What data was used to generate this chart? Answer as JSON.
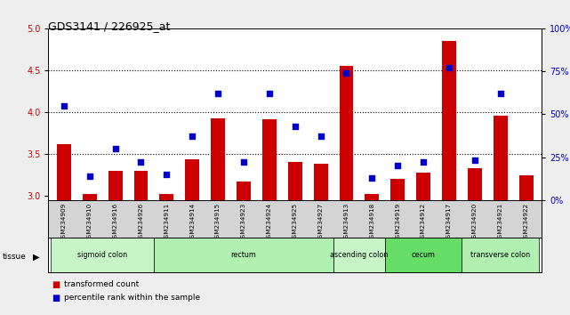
{
  "title": "GDS3141 / 226925_at",
  "samples": [
    "GSM234909",
    "GSM234910",
    "GSM234916",
    "GSM234926",
    "GSM234911",
    "GSM234914",
    "GSM234915",
    "GSM234923",
    "GSM234924",
    "GSM234925",
    "GSM234927",
    "GSM234913",
    "GSM234918",
    "GSM234919",
    "GSM234912",
    "GSM234917",
    "GSM234920",
    "GSM234921",
    "GSM234922"
  ],
  "red_values": [
    3.62,
    3.02,
    3.3,
    3.3,
    3.02,
    3.44,
    3.93,
    3.17,
    3.92,
    3.4,
    3.38,
    4.55,
    3.02,
    3.2,
    3.28,
    4.85,
    3.33,
    3.96,
    3.25
  ],
  "blue_pct": [
    55,
    14,
    30,
    22,
    15,
    37,
    62,
    22,
    62,
    43,
    37,
    74,
    13,
    20,
    22,
    77,
    23,
    62,
    null
  ],
  "ylim_left": [
    2.95,
    5.0
  ],
  "ylim_right": [
    0,
    100
  ],
  "yticks_left": [
    3.0,
    3.5,
    4.0,
    4.5,
    5.0
  ],
  "yticks_right": [
    0,
    25,
    50,
    75,
    100
  ],
  "ytick_labels_right": [
    "0%",
    "25%",
    "50%",
    "75%",
    "100%"
  ],
  "dotted_lines": [
    3.5,
    4.0,
    4.5
  ],
  "tissue_groups": [
    {
      "label": "sigmoid colon",
      "start": 0,
      "end": 3,
      "color": "#c8f5c8"
    },
    {
      "label": "rectum",
      "start": 4,
      "end": 10,
      "color": "#b0f0b0"
    },
    {
      "label": "ascending colon",
      "start": 11,
      "end": 12,
      "color": "#c8f5c8"
    },
    {
      "label": "cecum",
      "start": 13,
      "end": 15,
      "color": "#66dd66"
    },
    {
      "label": "transverse colon",
      "start": 16,
      "end": 18,
      "color": "#b0f0b0"
    }
  ],
  "bar_color": "#cc0000",
  "dot_color": "#0000cc",
  "bar_width": 0.55,
  "bg_color": "#eeeeee",
  "plot_bg": "#ffffff",
  "axis_left_color": "#cc0000",
  "axis_right_color": "#0000cc",
  "label_bg": "#d4d4d4"
}
